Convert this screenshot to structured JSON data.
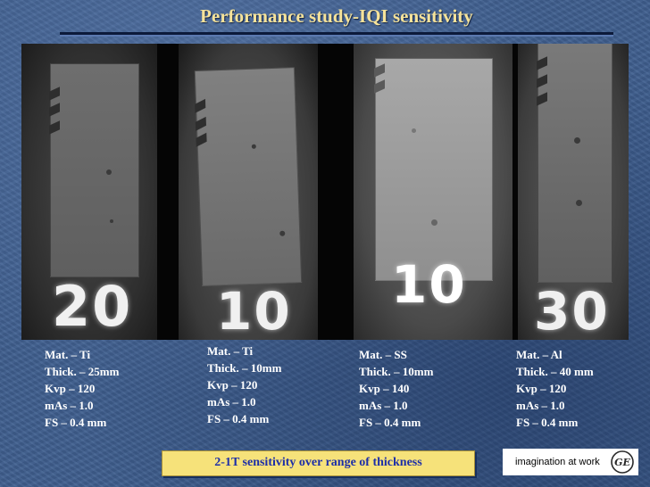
{
  "title": "Performance study-IQI sensitivity",
  "panels": [
    {
      "number": "20",
      "spec": [
        "Mat. – Ti",
        "Thick. – 25mm",
        "Kvp – 120",
        "mAs – 1.0",
        "FS – 0.4 mm"
      ]
    },
    {
      "number": "10",
      "spec": [
        "Mat. – Ti",
        "Thick. – 10mm",
        "Kvp – 120",
        "mAs – 1.0",
        "FS – 0.4 mm"
      ]
    },
    {
      "number": "10",
      "spec": [
        "Mat. – SS",
        "Thick. – 10mm",
        "Kvp – 140",
        "mAs – 1.0",
        "FS – 0.4 mm"
      ]
    },
    {
      "number": "30",
      "spec": [
        "Mat. – Al",
        "Thick. – 40 mm",
        "Kvp – 120",
        "mAs – 1.0",
        "FS – 0.4 mm"
      ]
    }
  ],
  "banner": "2-1T sensitivity over range of thickness",
  "brand": {
    "tagline": "imagination at work",
    "logo_text": "GE"
  },
  "colors": {
    "background": "#3f5f8f",
    "title": "#f6e39a",
    "banner_bg": "#f6e27a",
    "banner_text": "#1c2ea8"
  }
}
